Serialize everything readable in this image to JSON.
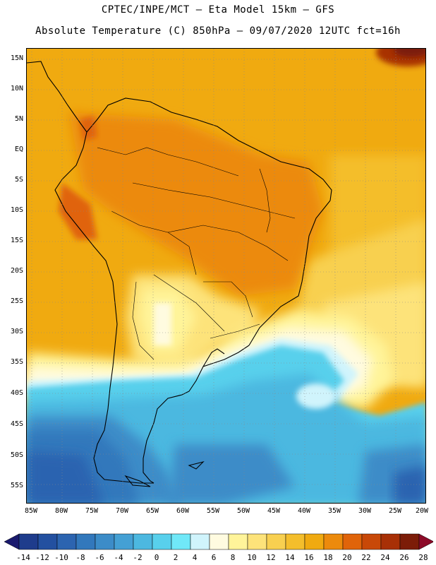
{
  "header": {
    "line1": "CPTEC/INPE/MCT –  Eta Model 15km – GFS",
    "line2": "Absolute Temperature (C) 850hPa – 09/07/2020 12UTC fct=16h"
  },
  "map": {
    "lat_ticks": [
      "15N",
      "10N",
      "5N",
      "EQ",
      "5S",
      "10S",
      "15S",
      "20S",
      "25S",
      "30S",
      "35S",
      "40S",
      "45S",
      "50S",
      "55S"
    ],
    "lon_ticks": [
      "85W",
      "80W",
      "75W",
      "70W",
      "65W",
      "60W",
      "55W",
      "50W",
      "45W",
      "40W",
      "35W",
      "30W",
      "25W",
      "20W"
    ],
    "gridlines": true,
    "lat_range": [
      -58,
      16
    ],
    "lon_range": [
      -86,
      -20
    ]
  },
  "legend": {
    "labels": [
      "-14",
      "-12",
      "-10",
      "-8",
      "-6",
      "-4",
      "-2",
      "0",
      "2",
      "4",
      "6",
      "8",
      "10",
      "12",
      "14",
      "16",
      "18",
      "20",
      "22",
      "24",
      "26",
      "28"
    ],
    "colors": [
      "#1e3c8c",
      "#2350a0",
      "#2c64b0",
      "#3278bc",
      "#3c8cc8",
      "#44a0d4",
      "#4cb8e0",
      "#58d0ec",
      "#70e8f8",
      "#d0f4fc",
      "#fffbe0",
      "#fff49a",
      "#fde37a",
      "#f8d050",
      "#f4be2c",
      "#f0aa10",
      "#ec8a0c",
      "#e0640a",
      "#c84808",
      "#a83006",
      "#7c1c08"
    ]
  }
}
